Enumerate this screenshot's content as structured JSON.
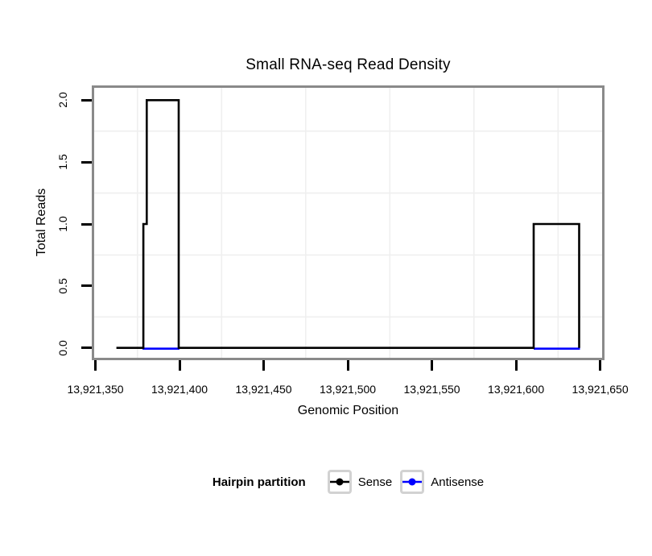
{
  "chart_data": {
    "type": "line",
    "style": "step",
    "title": "Small RNA-seq Read Density",
    "xlabel": "Genomic Position",
    "ylabel": "Total Reads",
    "xlim": [
      13921350,
      13921650
    ],
    "ylim": [
      0,
      2
    ],
    "x_ticks": [
      {
        "value": 13921350,
        "label": "13,921,350"
      },
      {
        "value": 13921400,
        "label": "13,921,400"
      },
      {
        "value": 13921450,
        "label": "13,921,450"
      },
      {
        "value": 13921500,
        "label": "13,921,500"
      },
      {
        "value": 13921550,
        "label": "13,921,550"
      },
      {
        "value": 13921600,
        "label": "13,921,600"
      },
      {
        "value": 13921650,
        "label": "13,921,650"
      }
    ],
    "y_ticks": [
      {
        "value": 0.0,
        "label": "0.0"
      },
      {
        "value": 0.5,
        "label": "0.5"
      },
      {
        "value": 1.0,
        "label": "1.0"
      },
      {
        "value": 1.5,
        "label": "1.5"
      },
      {
        "value": 2.0,
        "label": "2.0"
      }
    ],
    "grid": {
      "minor_x": [
        13921375,
        13921425,
        13921475,
        13921525,
        13921575,
        13921625
      ],
      "minor_y": [
        0.25,
        0.75,
        1.25,
        1.75
      ],
      "color": "#efefef",
      "major_visible": false
    },
    "panel_border_color": "#8a8a8a",
    "series": [
      {
        "name": "Sense",
        "color": "#000000",
        "segments": [
          [
            [
              13921362.5,
              0
            ],
            [
              13921378.5,
              0
            ],
            [
              13921378.5,
              1
            ],
            [
              13921380.5,
              1
            ],
            [
              13921380.5,
              2
            ],
            [
              13921399.5,
              2
            ],
            [
              13921399.5,
              0
            ],
            [
              13921610.5,
              0
            ],
            [
              13921610.5,
              1
            ],
            [
              13921637.5,
              1
            ],
            [
              13921637.5,
              0
            ]
          ]
        ]
      },
      {
        "name": "Antisense",
        "color": "#0000ff",
        "value": 0,
        "segments": [
          [
            [
              13921378,
              0
            ],
            [
              13921400,
              0
            ]
          ],
          [
            [
              13921610.5,
              0
            ],
            [
              13921638,
              0
            ]
          ]
        ]
      }
    ],
    "legend": {
      "title": "Hairpin partition",
      "position": "bottom",
      "entries": [
        {
          "label": "Sense",
          "color": "#000000"
        },
        {
          "label": "Antisense",
          "color": "#0000ff"
        }
      ]
    }
  }
}
